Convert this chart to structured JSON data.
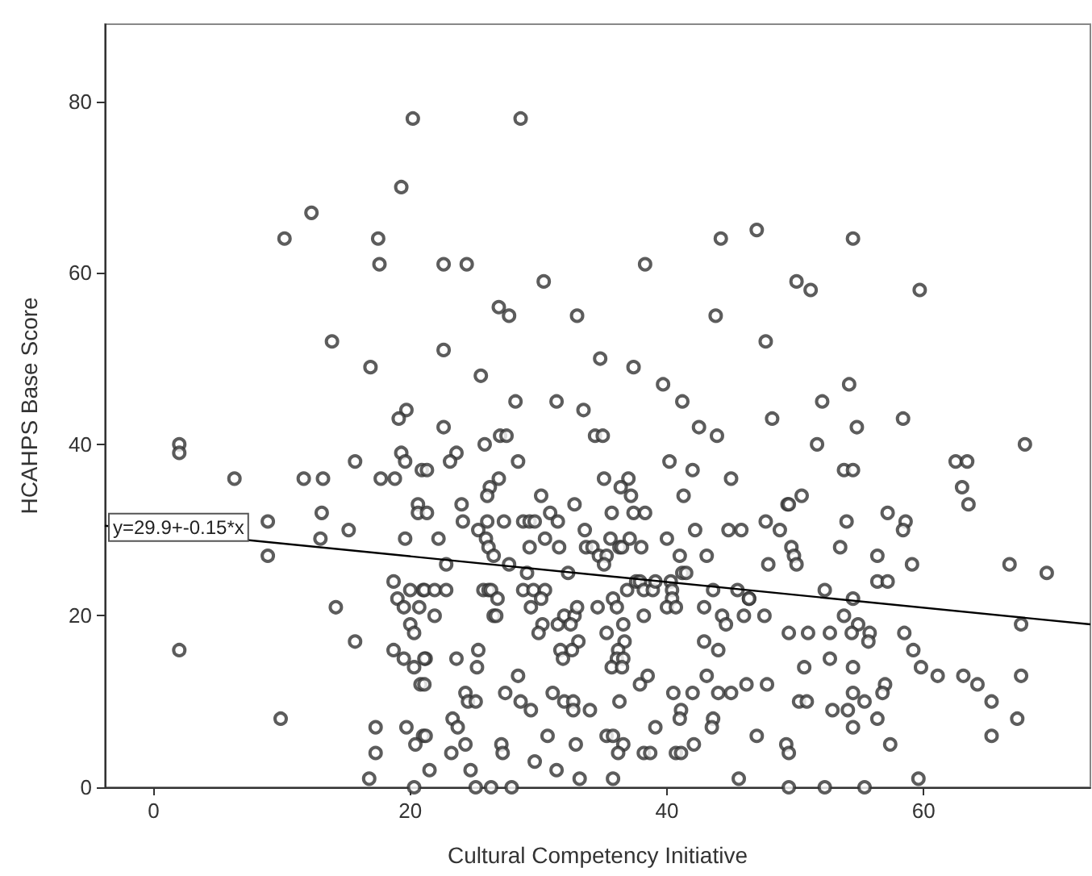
{
  "chart_data": {
    "type": "scatter",
    "xlabel": "Cultural Competency Initiative",
    "ylabel": "HCAHPS Base Score",
    "xlim": [
      -3.8,
      73
    ],
    "ylim": [
      0,
      89
    ],
    "xticks": [
      0,
      20,
      40,
      60
    ],
    "yticks": [
      0,
      20,
      40,
      60,
      80
    ],
    "annotations": [
      "y=29.9+-0.15*x"
    ],
    "series": [
      {
        "color": "#333333",
        "marker": "circle",
        "x": [
          20.2,
          28.6,
          19.3,
          12.3,
          10.2,
          17.5,
          17.6,
          22.6,
          24.4,
          38.3,
          30.4,
          26.9,
          27.7,
          33,
          44.2,
          47,
          54.5,
          50.1,
          51.2,
          59.7,
          43.8,
          13.9,
          22.6,
          47.7,
          16.9,
          25.5,
          34.8,
          37.4,
          39.7,
          54.2,
          28.2,
          31.4,
          33.5,
          41.2,
          52.1,
          19.7,
          19.1,
          48.2,
          58.4,
          54.8,
          22.6,
          42.5,
          23.6,
          23.1,
          25.8,
          27,
          27.5,
          28.4,
          26.9,
          26.2,
          26,
          34.4,
          35,
          40.2,
          42,
          43.9,
          45,
          41.3,
          51.7,
          67.9,
          53.8,
          54.5,
          62.5,
          63.4,
          63,
          63.5,
          2,
          2,
          6.3,
          11.7,
          13.2,
          15.7,
          17.7,
          18.8,
          19.3,
          19.6,
          20.9,
          21.3,
          8.9,
          13.1,
          15.2,
          13,
          8.9,
          19.6,
          20.6,
          20.6,
          21.3,
          18.7,
          20,
          21,
          19,
          19.5,
          20.7,
          14.2,
          20,
          20.3,
          2,
          15.7,
          18.7,
          19.5,
          20.3,
          21.2,
          20.8,
          9.9,
          17.3,
          19.7,
          21,
          20.4,
          17.3,
          21.5,
          16.8,
          20.3,
          24,
          24.1,
          25.3,
          26,
          27.3,
          28.8,
          29.3,
          29.7,
          30.2,
          30.9,
          31.5,
          32.8,
          22.2,
          25.9,
          26.1,
          26.5,
          29.3,
          30.5,
          31.6,
          33.6,
          33.7,
          34.2,
          34.7,
          35.3,
          35.1,
          35.6,
          36.3,
          36.5,
          37.1,
          35.1,
          37,
          36.4,
          37.2,
          35.7,
          37.4,
          38.3,
          38,
          40,
          42.2,
          41,
          43.1,
          44.8,
          45.8,
          41.2,
          41.5,
          32.3,
          27.7,
          29.1,
          22.8,
          21.1,
          21.9,
          22.8,
          25.7,
          26.1,
          26.3,
          26.8,
          26.5,
          26.7,
          21.9,
          28.8,
          29.6,
          30.5,
          29.4,
          30.2,
          30.3,
          30,
          31.5,
          32,
          32.8,
          33,
          32.5,
          33.1,
          32.6,
          31.7,
          31.9,
          34.6,
          35.8,
          36.1,
          36.6,
          36.7,
          35.3,
          36.2,
          36.1,
          36.6,
          35.7,
          36.5,
          36.9,
          37.6,
          37.9,
          38.2,
          38.9,
          39.1,
          38.2,
          40.3,
          40.4,
          40.4,
          40,
          40.7,
          42.9,
          43.6,
          45.5,
          46.4,
          46,
          44.3,
          44.6,
          42.9,
          44,
          43.1,
          46.2,
          37.9,
          38.5,
          40.5,
          42,
          44,
          45,
          41.1,
          41,
          43.6,
          43.5,
          39.1,
          47,
          21.1,
          23.6,
          25.3,
          25.2,
          21.1,
          28.4,
          27.4,
          28.6,
          29.4,
          31.1,
          32,
          32.7,
          32.7,
          34,
          36.3,
          24.3,
          24.5,
          25.1,
          23.3,
          23.7,
          21.2,
          24.3,
          23.2,
          27.1,
          27.2,
          30.7,
          32.9,
          35.3,
          35.8,
          36.6,
          36.2,
          38.2,
          38.7,
          40.7,
          41.1,
          42.1,
          24.7,
          29.7,
          31.4,
          33.2,
          35.8,
          45.6,
          25.1,
          26.3,
          27.9,
          49.4,
          49.5,
          50.5,
          47.7,
          48.8,
          54,
          57.2,
          58.6,
          58.4,
          49.7,
          49.9,
          50.1,
          53.5,
          47.9,
          56.4,
          59.1,
          56.4,
          57.2,
          66.7,
          69.6,
          46.4,
          47.6,
          52.3,
          54.5,
          53.8,
          54.9,
          55.8,
          55.7,
          49.5,
          51,
          52.7,
          54.4,
          58.5,
          59.2,
          67.6,
          52.7,
          50.7,
          54.5,
          59.8,
          61.1,
          63.1,
          64.2,
          65.3,
          67.6,
          67.3,
          65.3,
          47.8,
          57,
          56.8,
          54.5,
          55.4,
          50.3,
          50.9,
          52.9,
          54.1,
          54.5,
          56.4,
          49.3,
          49.5,
          57.4,
          59.6,
          49.5,
          52.3,
          55.4
        ],
        "values": [
          78,
          78,
          70,
          67,
          64,
          64,
          61,
          61,
          61,
          61,
          59,
          56,
          55,
          55,
          64,
          65,
          64,
          59,
          58,
          58,
          55,
          52,
          51,
          52,
          49,
          48,
          50,
          49,
          47,
          47,
          45,
          45,
          44,
          45,
          45,
          44,
          43,
          43,
          43,
          42,
          42,
          42,
          39,
          38,
          40,
          41,
          41,
          38,
          36,
          35,
          34,
          41,
          41,
          38,
          37,
          41,
          36,
          34,
          40,
          40,
          37,
          37,
          38,
          38,
          35,
          33,
          40,
          39,
          36,
          36,
          36,
          38,
          36,
          36,
          39,
          38,
          37,
          37,
          31,
          32,
          30,
          29,
          27,
          29,
          33,
          32,
          32,
          24,
          23,
          23,
          22,
          21,
          21,
          21,
          19,
          18,
          16,
          17,
          16,
          15,
          14,
          15,
          12,
          8,
          7,
          7,
          6,
          5,
          4,
          2,
          1,
          0,
          33,
          31,
          30,
          31,
          31,
          31,
          31,
          31,
          34,
          32,
          31,
          33,
          29,
          29,
          28,
          27,
          28,
          29,
          28,
          30,
          28,
          28,
          27,
          27,
          26,
          29,
          28,
          28,
          29,
          36,
          36,
          35,
          34,
          32,
          32,
          32,
          28,
          29,
          30,
          27,
          27,
          30,
          30,
          25,
          25,
          25,
          26,
          25,
          26,
          23,
          23,
          23,
          23,
          23,
          23,
          22,
          20,
          20,
          20,
          23,
          23,
          23,
          21,
          22,
          19,
          18,
          19,
          20,
          20,
          21,
          19,
          17,
          16,
          16,
          15,
          21,
          22,
          21,
          19,
          17,
          18,
          16,
          15,
          15,
          14,
          14,
          23,
          24,
          24,
          23,
          23,
          24,
          20,
          24,
          23,
          22,
          21,
          21,
          21,
          23,
          23,
          22,
          20,
          20,
          19,
          17,
          16,
          13,
          12,
          12,
          13,
          11,
          11,
          11,
          11,
          9,
          8,
          8,
          7,
          7,
          6,
          15,
          15,
          16,
          14,
          12,
          13,
          11,
          10,
          9,
          11,
          10,
          10,
          9,
          9,
          10,
          11,
          10,
          10,
          8,
          7,
          6,
          5,
          4,
          5,
          4,
          6,
          5,
          6,
          6,
          5,
          4,
          4,
          4,
          4,
          4,
          5,
          2,
          3,
          2,
          1,
          1,
          1,
          0,
          0,
          0,
          33,
          33,
          34,
          31,
          30,
          31,
          32,
          31,
          30,
          28,
          27,
          26,
          28,
          26,
          27,
          26,
          24,
          24,
          26,
          25,
          22,
          20,
          23,
          22,
          20,
          19,
          18,
          17,
          18,
          18,
          18,
          18,
          18,
          16,
          19,
          15,
          14,
          14,
          14,
          13,
          13,
          12,
          10,
          13,
          8,
          6,
          12,
          12,
          11,
          11,
          10,
          10,
          10,
          9,
          9,
          7,
          8,
          5,
          4,
          5,
          1,
          0,
          0,
          0
        ]
      },
      {
        "type": "line",
        "color": "#000000",
        "marker": "none",
        "x": [
          -3.8,
          73
        ],
        "values": [
          30.5,
          19.0
        ]
      }
    ]
  }
}
